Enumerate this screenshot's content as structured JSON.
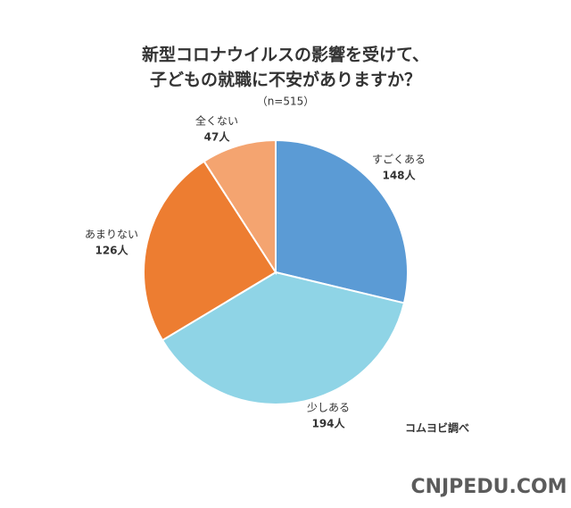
{
  "chart_data": {
    "type": "pie",
    "title": [
      "新型コロナウイルスの影響を受けて、",
      "子どもの就職に不安がありますか？"
    ],
    "subtitle": "（n=515）",
    "categories": [
      "すごくある",
      "少しある",
      "あまりない",
      "全くない"
    ],
    "values": [
      148,
      194,
      126,
      47
    ],
    "value_labels": [
      "148人",
      "194人",
      "126人",
      "47人"
    ],
    "colors": [
      "#5b9bd5",
      "#8fd4e6",
      "#ed7d31",
      "#f4a470"
    ],
    "note": "コムヨビ調べ",
    "watermark": "CNJPEDU.COM"
  }
}
